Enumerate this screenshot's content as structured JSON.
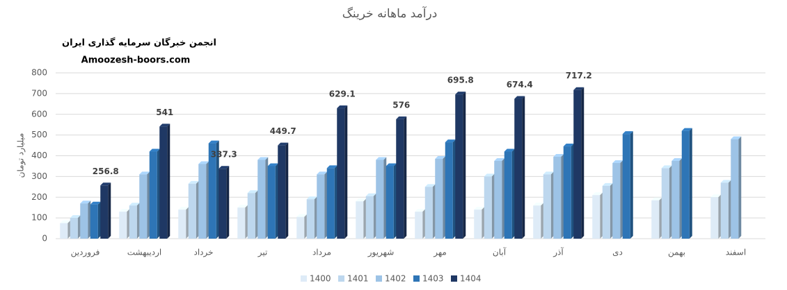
{
  "chart_data": {
    "type": "bar3d",
    "title": "درآمد ماهانه خرینگ",
    "watermark": [
      "انجمن خبرگان سرمایه گذاری ایران",
      "Amoozesh-boors.com"
    ],
    "y_label": "میلیارد تومان",
    "categories": [
      "فروردین",
      "اردیبهشت",
      "خرداد",
      "تیر",
      "مرداد",
      "شهریور",
      "مهر",
      "آبان",
      "آذر",
      "دی",
      "بهمن",
      "اسفند"
    ],
    "series": [
      {
        "name": "1400",
        "color": "#deebf7",
        "values": [
          75,
          130,
          140,
          150,
          105,
          180,
          130,
          140,
          160,
          210,
          185,
          200
        ]
      },
      {
        "name": "1401",
        "color": "#bdd7ee",
        "values": [
          100,
          160,
          265,
          220,
          190,
          205,
          250,
          300,
          310,
          255,
          340,
          270
        ]
      },
      {
        "name": "1402",
        "color": "#9dc3e6",
        "values": [
          170,
          310,
          360,
          380,
          310,
          380,
          385,
          375,
          395,
          365,
          375,
          480
        ]
      },
      {
        "name": "1403",
        "color": "#2e75b6",
        "values": [
          165,
          420,
          460,
          350,
          340,
          350,
          465,
          420,
          445,
          505,
          520,
          null
        ]
      },
      {
        "name": "1404",
        "color": "#1f3864",
        "values": [
          256.8,
          541,
          337.3,
          449.7,
          629.1,
          576,
          695.8,
          674.4,
          717.2,
          null,
          null,
          null
        ],
        "show_labels": true
      }
    ],
    "ylim": [
      0,
      800
    ],
    "yticks": [
      0,
      100,
      200,
      300,
      400,
      500,
      600,
      700,
      800
    ],
    "grid": true
  }
}
